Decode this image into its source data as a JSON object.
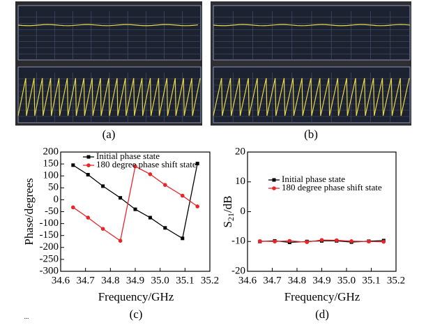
{
  "photos": [
    {
      "label": "(a)"
    },
    {
      "label": "(b)"
    }
  ],
  "corner_mark": "...",
  "chart_data": [
    {
      "type": "line",
      "caption": "(c)",
      "xlabel": "Frequency/GHz",
      "ylabel": "Phase/degrees",
      "x": [
        34.65,
        34.71,
        34.77,
        34.84,
        34.9,
        34.96,
        35.02,
        35.09,
        35.15
      ],
      "series": [
        {
          "name": "Initial phase state",
          "color": "#000000",
          "marker": "square",
          "values": [
            145,
            105,
            57,
            8,
            -40,
            -75,
            -118,
            -162,
            152
          ]
        },
        {
          "name": "180 degree phase shift state",
          "color": "#e8262a",
          "marker": "circle",
          "values": [
            -32,
            -75,
            -122,
            -172,
            140,
            107,
            62,
            17,
            -28
          ]
        }
      ],
      "xlim": [
        34.6,
        35.2
      ],
      "xticks": [
        34.6,
        34.7,
        34.8,
        34.9,
        {
          "value": 35.0,
          "label": "35.0"
        },
        35.1,
        35.2
      ],
      "ylim": [
        -300,
        200
      ],
      "yticks": [
        -300,
        -250,
        -200,
        -150,
        -100,
        -50,
        0,
        50,
        100,
        150,
        200
      ]
    },
    {
      "type": "line",
      "caption": "(d)",
      "xlabel": "Frequency/GHz",
      "ylabel": {
        "base": "S",
        "sub": "21",
        "unit": "/dB"
      },
      "x": [
        34.65,
        34.71,
        34.77,
        34.84,
        34.9,
        34.96,
        35.02,
        35.09,
        35.15
      ],
      "series": [
        {
          "name": "Initial phase state",
          "color": "#000000",
          "marker": "square",
          "values": [
            -10,
            -9.8,
            -10.3,
            -10,
            -9.8,
            -9.8,
            -10.2,
            -9.9,
            -9.7
          ]
        },
        {
          "name": "180 degree phase shift state",
          "color": "#e8262a",
          "marker": "circle",
          "values": [
            -9.9,
            -10,
            -9.8,
            -10.2,
            -9.5,
            -9.6,
            -9.9,
            -10,
            -10.1
          ]
        }
      ],
      "xlim": [
        34.6,
        35.2
      ],
      "xticks": [
        34.6,
        34.7,
        34.8,
        34.9,
        {
          "value": 35.0,
          "label": "35.0"
        },
        35.1,
        35.2
      ],
      "ylim": [
        -20,
        20
      ],
      "yticks": [
        -20,
        -10,
        0,
        10,
        20
      ]
    }
  ]
}
